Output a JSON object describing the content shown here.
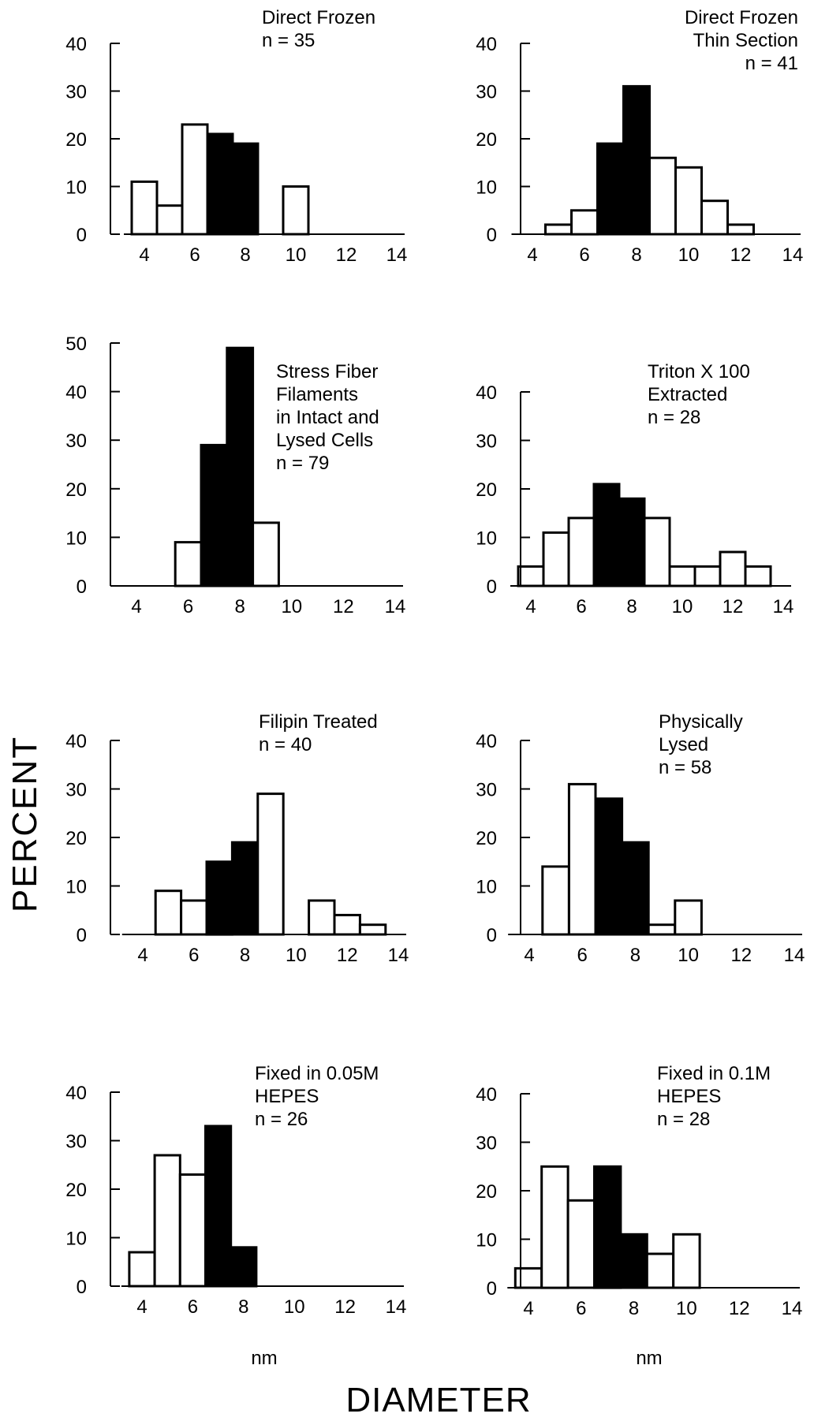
{
  "figure": {
    "ylabel": "PERCENT",
    "xlabel": "DIAMETER",
    "unit_left": "nm",
    "unit_right": "nm"
  },
  "chart_data": [
    {
      "type": "bar",
      "label_lines": [
        "Direct Frozen",
        "n  =  35"
      ],
      "bins": [
        4,
        5,
        6,
        7,
        8,
        9,
        10
      ],
      "values": [
        11,
        6,
        23,
        21,
        19,
        0,
        10
      ],
      "highlighted": [
        false,
        false,
        false,
        true,
        true,
        false,
        false
      ],
      "xlim": [
        4,
        14
      ],
      "xticks": [
        4,
        6,
        8,
        10,
        12,
        14
      ],
      "ylim": [
        0,
        40
      ],
      "yticks": [
        0,
        10,
        20,
        30,
        40
      ]
    },
    {
      "type": "bar",
      "label_lines": [
        "Direct Frozen",
        "Thin Section",
        "n = 41"
      ],
      "bins": [
        5,
        6,
        7,
        8,
        9,
        10,
        11,
        12
      ],
      "values": [
        2,
        5,
        19,
        31,
        16,
        14,
        7,
        2
      ],
      "highlighted": [
        false,
        false,
        true,
        true,
        false,
        false,
        false,
        false
      ],
      "xlim": [
        4,
        14
      ],
      "xticks": [
        4,
        6,
        8,
        10,
        12,
        14
      ],
      "ylim": [
        0,
        40
      ],
      "yticks": [
        0,
        10,
        20,
        30,
        40
      ]
    },
    {
      "type": "bar",
      "label_lines": [
        "Stress Fiber",
        "Filaments",
        "in Intact and",
        "Lysed Cells",
        "n = 79"
      ],
      "bins": [
        6,
        7,
        8,
        9
      ],
      "values": [
        9,
        29,
        49,
        13
      ],
      "highlighted": [
        false,
        true,
        true,
        false
      ],
      "xlim": [
        4,
        14
      ],
      "xticks": [
        4,
        6,
        8,
        10,
        12,
        14
      ],
      "ylim": [
        0,
        50
      ],
      "yticks": [
        0,
        10,
        20,
        30,
        40,
        50
      ]
    },
    {
      "type": "bar",
      "label_lines": [
        "Triton X 100",
        "Extracted",
        "n = 28"
      ],
      "bins": [
        4,
        5,
        6,
        7,
        8,
        9,
        10,
        11,
        12,
        13
      ],
      "values": [
        4,
        11,
        14,
        21,
        18,
        14,
        4,
        4,
        7,
        4
      ],
      "highlighted": [
        false,
        false,
        false,
        true,
        true,
        false,
        false,
        false,
        false,
        false
      ],
      "xlim": [
        4,
        14
      ],
      "xticks": [
        4,
        6,
        8,
        10,
        12,
        14
      ],
      "ylim": [
        0,
        40
      ],
      "yticks": [
        0,
        10,
        20,
        30,
        40
      ]
    },
    {
      "type": "bar",
      "label_lines": [
        "Filipin Treated",
        "n = 40"
      ],
      "bins": [
        5,
        6,
        7,
        8,
        9,
        10,
        11,
        12,
        13
      ],
      "values": [
        9,
        7,
        15,
        19,
        29,
        0,
        7,
        4,
        2
      ],
      "highlighted": [
        false,
        false,
        true,
        true,
        false,
        false,
        false,
        false,
        false
      ],
      "xlim": [
        4,
        14
      ],
      "xticks": [
        4,
        6,
        8,
        10,
        12,
        14
      ],
      "ylim": [
        0,
        40
      ],
      "yticks": [
        0,
        10,
        20,
        30,
        40
      ]
    },
    {
      "type": "bar",
      "label_lines": [
        "Physically",
        "Lysed",
        "n = 58"
      ],
      "bins": [
        5,
        6,
        7,
        8,
        9,
        10
      ],
      "values": [
        14,
        31,
        28,
        19,
        2,
        7
      ],
      "highlighted": [
        false,
        false,
        true,
        true,
        false,
        false
      ],
      "xlim": [
        4,
        14
      ],
      "xticks": [
        4,
        6,
        8,
        10,
        12,
        14
      ],
      "ylim": [
        0,
        40
      ],
      "yticks": [
        0,
        10,
        20,
        30,
        40
      ]
    },
    {
      "type": "bar",
      "label_lines": [
        "Fixed in 0.05M",
        "HEPES",
        "n = 26"
      ],
      "bins": [
        4,
        5,
        6,
        7,
        8
      ],
      "values": [
        7,
        27,
        23,
        33,
        8
      ],
      "highlighted": [
        false,
        false,
        false,
        true,
        true
      ],
      "xlim": [
        4,
        14
      ],
      "xticks": [
        4,
        6,
        8,
        10,
        12,
        14
      ],
      "ylim": [
        0,
        40
      ],
      "yticks": [
        0,
        10,
        20,
        30,
        40
      ]
    },
    {
      "type": "bar",
      "label_lines": [
        "Fixed in 0.1M",
        "HEPES",
        "n = 28"
      ],
      "bins": [
        4,
        5,
        6,
        7,
        8,
        9,
        10
      ],
      "values": [
        4,
        25,
        18,
        25,
        11,
        7,
        11
      ],
      "highlighted": [
        false,
        false,
        false,
        true,
        true,
        false,
        false
      ],
      "xlim": [
        4,
        14
      ],
      "xticks": [
        4,
        6,
        8,
        10,
        12,
        14
      ],
      "ylim": [
        0,
        40
      ],
      "yticks": [
        0,
        10,
        20,
        30,
        40
      ]
    }
  ]
}
